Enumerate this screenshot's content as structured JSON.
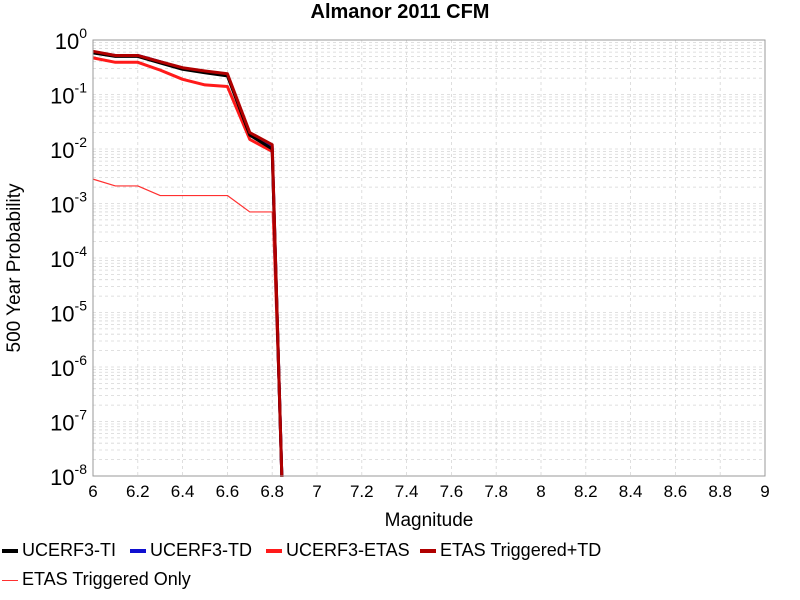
{
  "chart_data": {
    "type": "line",
    "title": "Almanor 2011 CFM",
    "xlabel": "Magnitude",
    "ylabel": "500 Year Probability",
    "xlim": [
      6,
      9
    ],
    "ylim": [
      1e-08,
      1
    ],
    "yscale": "log",
    "grid": true,
    "x_ticks": [
      "6",
      "6.2",
      "6.4",
      "6.6",
      "6.8",
      "7",
      "7.2",
      "7.4",
      "7.6",
      "7.8",
      "8",
      "8.2",
      "8.4",
      "8.6",
      "8.8",
      "9"
    ],
    "y_ticks": [
      {
        "base": "10",
        "exp": "0"
      },
      {
        "base": "10",
        "exp": "-1"
      },
      {
        "base": "10",
        "exp": "-2"
      },
      {
        "base": "10",
        "exp": "-3"
      },
      {
        "base": "10",
        "exp": "-4"
      },
      {
        "base": "10",
        "exp": "-5"
      },
      {
        "base": "10",
        "exp": "-6"
      },
      {
        "base": "10",
        "exp": "-7"
      },
      {
        "base": "10",
        "exp": "-8"
      }
    ],
    "legend_position": "bottom",
    "series": [
      {
        "name": "UCERF3-TI",
        "color": "#000000",
        "x": [
          6.0,
          6.1,
          6.2,
          6.3,
          6.4,
          6.5,
          6.6,
          6.7,
          6.8,
          6.85
        ],
        "y": [
          0.58,
          0.5,
          0.5,
          0.38,
          0.29,
          0.25,
          0.22,
          0.018,
          0.01,
          1e-09
        ]
      },
      {
        "name": "UCERF3-TD",
        "color": "#1010d0",
        "x": [
          6.0,
          6.1,
          6.2,
          6.3,
          6.4,
          6.5,
          6.6,
          6.7,
          6.8,
          6.85
        ],
        "y": [
          0.6,
          0.52,
          0.52,
          0.4,
          0.3,
          0.26,
          0.23,
          0.019,
          0.011,
          1e-09
        ]
      },
      {
        "name": "UCERF3-ETAS",
        "color": "#ff1a1a",
        "x": [
          6.0,
          6.1,
          6.2,
          6.3,
          6.4,
          6.5,
          6.6,
          6.7,
          6.8,
          6.85
        ],
        "y": [
          0.47,
          0.39,
          0.39,
          0.28,
          0.19,
          0.15,
          0.14,
          0.015,
          0.009,
          1e-09
        ]
      },
      {
        "name": "ETAS Triggered+TD",
        "color": "#b00000",
        "x": [
          6.0,
          6.1,
          6.2,
          6.3,
          6.4,
          6.5,
          6.6,
          6.7,
          6.8,
          6.85
        ],
        "y": [
          0.62,
          0.52,
          0.52,
          0.4,
          0.31,
          0.27,
          0.24,
          0.02,
          0.012,
          1e-09
        ]
      },
      {
        "name": "ETAS Triggered Only",
        "color": "#ff3030",
        "x": [
          6.0,
          6.1,
          6.2,
          6.3,
          6.4,
          6.5,
          6.6,
          6.7,
          6.8,
          6.85
        ],
        "y": [
          0.0028,
          0.0021,
          0.0021,
          0.0014,
          0.0014,
          0.0014,
          0.0014,
          0.0007,
          0.0007,
          1e-09
        ]
      }
    ]
  }
}
